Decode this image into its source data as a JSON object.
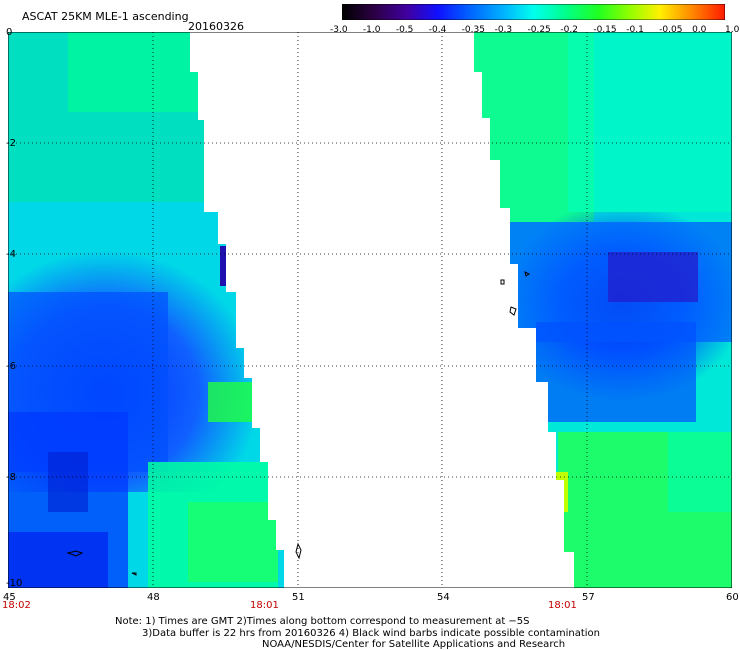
{
  "header": {
    "title": "ASCAT 25KM MLE-1 ascending",
    "date": "20160326"
  },
  "colorbar": {
    "labels": [
      "-3.0",
      "-1.0",
      "-0.5",
      "-0.4",
      "-0.35",
      "-0.3",
      "-0.25",
      "-0.2",
      "-0.15",
      "-0.1",
      "-0.05",
      "0.0",
      "1.0"
    ],
    "colors": [
      "#1a0010",
      "#3c0070",
      "#2a1aa0",
      "#0000ff",
      "#0057ff",
      "#00a8ff",
      "#00ffe8",
      "#00ff80",
      "#55ff00",
      "#c8ff00",
      "#ffd200",
      "#ff6a00",
      "#ff1e00"
    ]
  },
  "axes": {
    "x_ticks": [
      "45",
      "48",
      "51",
      "54",
      "57",
      "60"
    ],
    "y_ticks": [
      "0",
      "-2",
      "-4",
      "-6",
      "-8",
      "-10"
    ],
    "pass_times": [
      "18:02",
      "18:01",
      "18:01"
    ]
  },
  "swaths": {
    "left": {
      "lon_start": 45,
      "lat_range": [
        0,
        -10
      ]
    },
    "right": {
      "lon_end": 60,
      "lat_range": [
        0,
        -10
      ]
    }
  },
  "notes": {
    "line1": "Note: 1) Times are GMT 2)Times along bottom correspond to measurement at −5S",
    "line2": "3)Data buffer is 22 hrs from 20160326 4) Black wind barbs indicate possible contamination",
    "line3": "NOAA/NESDIS/Center for Satellite Applications and Research"
  }
}
